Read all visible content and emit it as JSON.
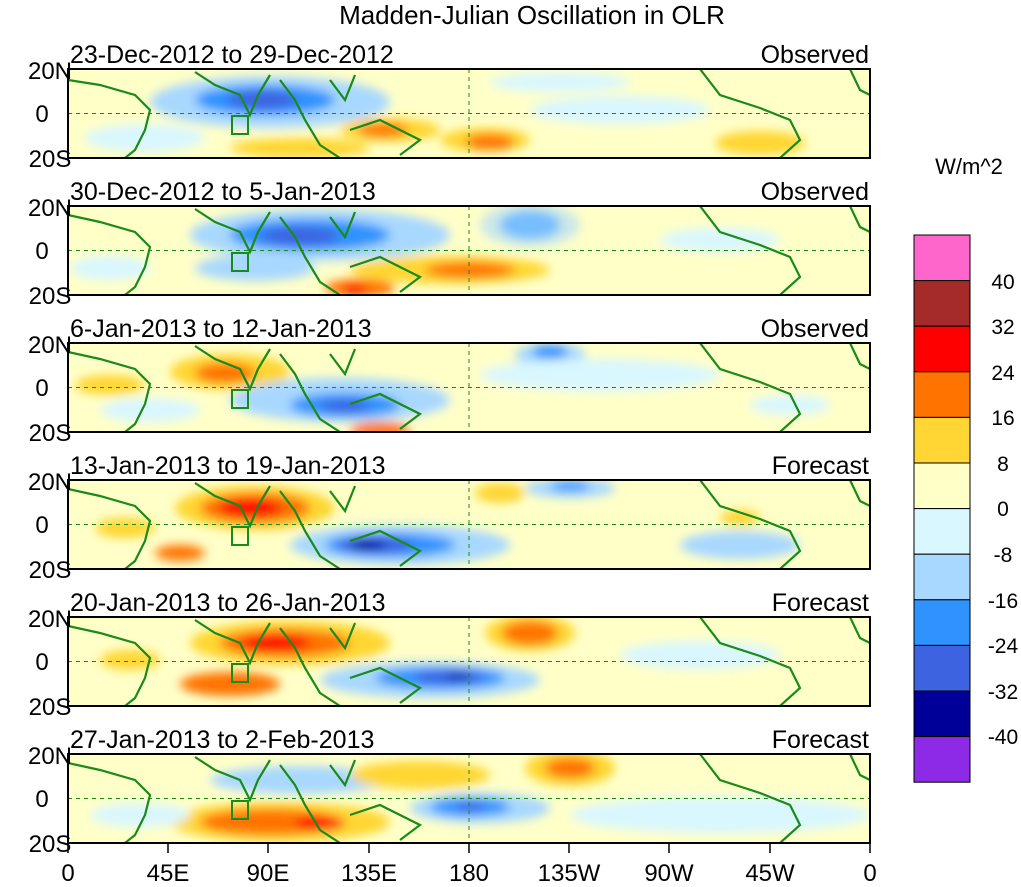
{
  "title": "Madden-Julian Oscillation in OLR",
  "colorbar": {
    "unit_label": "W/m^2",
    "colors": [
      "#ff66cc",
      "#a52a2a",
      "#ff0000",
      "#ff7300",
      "#ffd633",
      "#ffffc8",
      "#d9f7ff",
      "#a8d8ff",
      "#2e93ff",
      "#3d63e0",
      "#000099",
      "#8c2ae6"
    ],
    "tick_labels": [
      "40",
      "32",
      "24",
      "16",
      "8",
      "0",
      "-8",
      "-16",
      "-24",
      "-32",
      "-40"
    ]
  },
  "axes": {
    "lat_ticks": [
      "20N",
      "0",
      "20S"
    ],
    "lon_ticks": [
      "0",
      "45E",
      "90E",
      "135E",
      "180",
      "135W",
      "90W",
      "45W",
      "0"
    ]
  },
  "panels": [
    {
      "dates": "23-Dec-2012 to 29-Dec-2012",
      "label": "Observed"
    },
    {
      "dates": "30-Dec-2012 to 5-Jan-2013",
      "label": "Observed"
    },
    {
      "dates": "6-Jan-2013 to 12-Jan-2013",
      "label": "Observed"
    },
    {
      "dates": "13-Jan-2013 to 19-Jan-2013",
      "label": "Forecast"
    },
    {
      "dates": "20-Jan-2013 to 26-Jan-2013",
      "label": "Forecast"
    },
    {
      "dates": "27-Jan-2013 to 2-Feb-2013",
      "label": "Forecast"
    }
  ]
}
